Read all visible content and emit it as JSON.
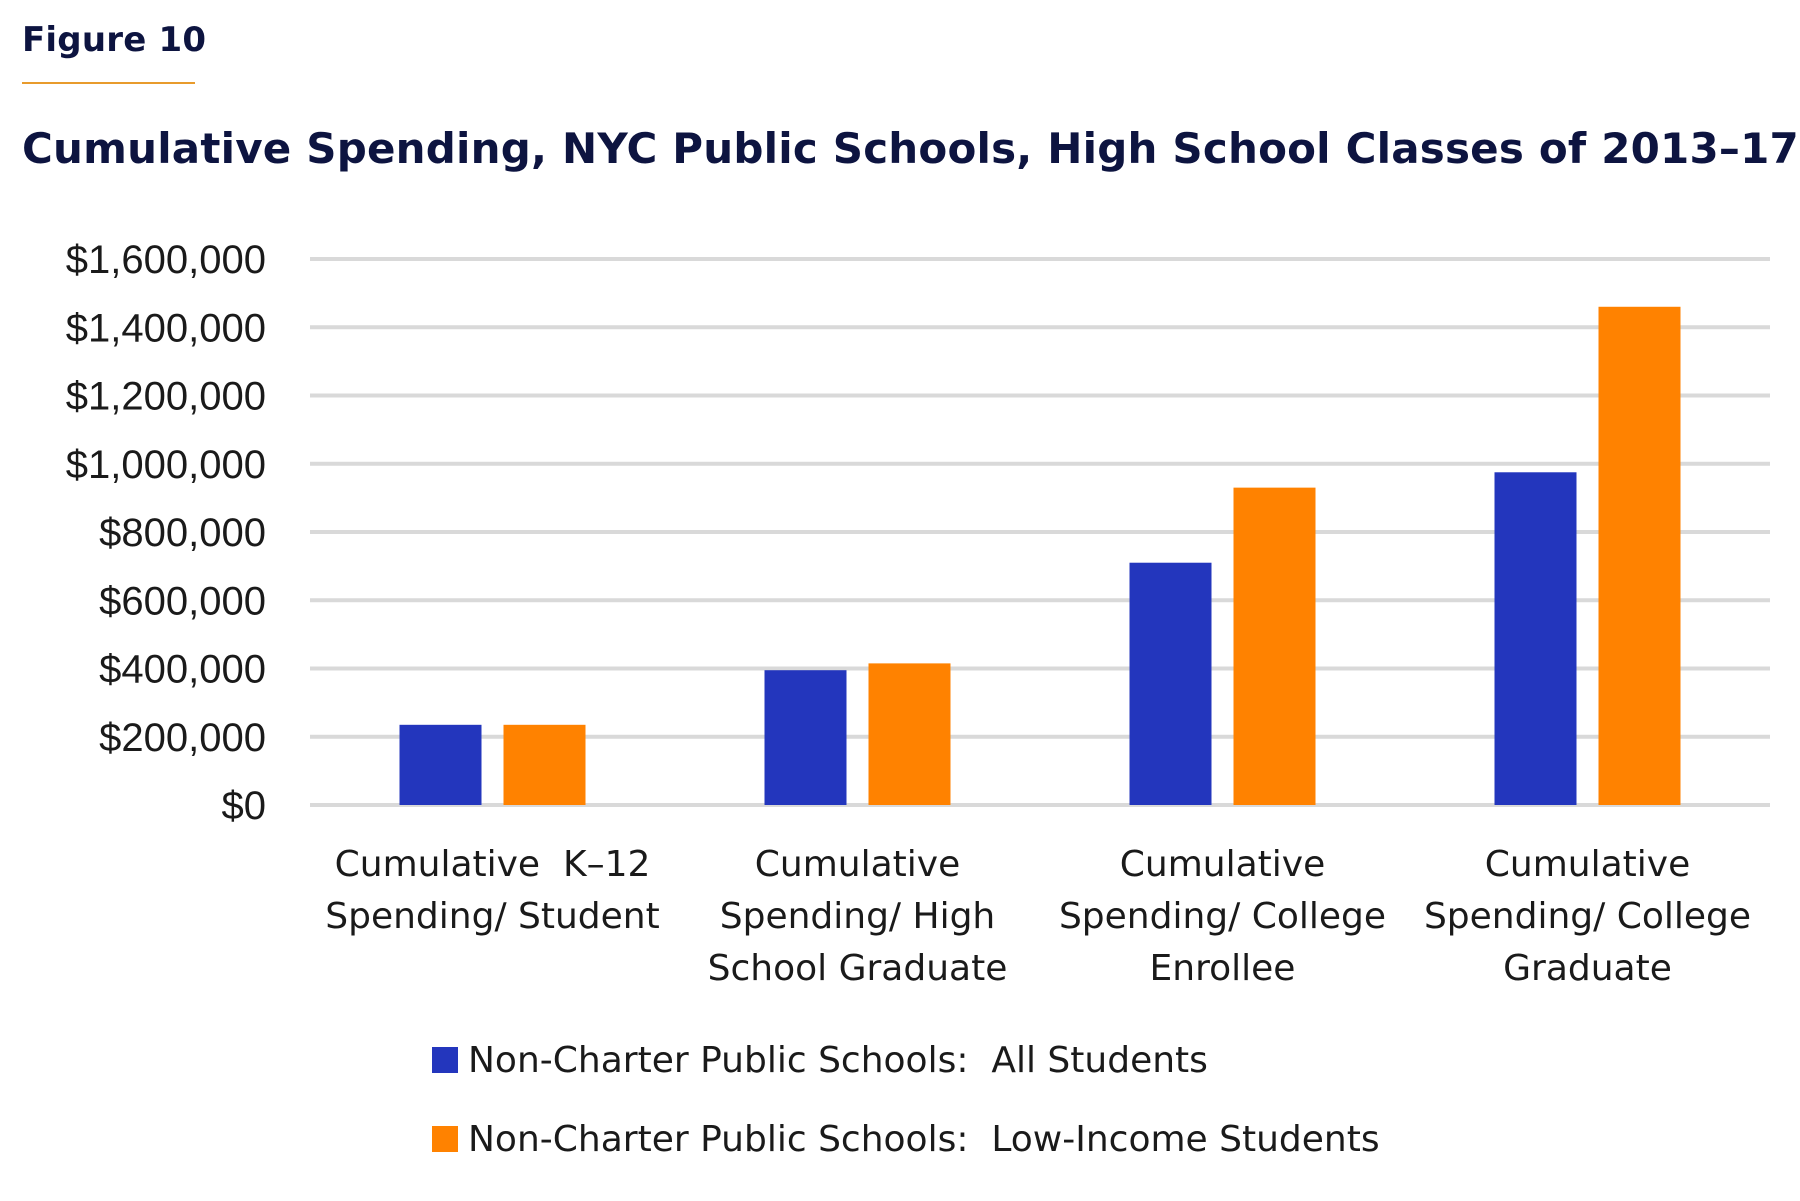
{
  "figure_label": "Figure 10",
  "colors": {
    "all_students": "#2336bd",
    "low_income": "#ff8200",
    "title": "#0d1440",
    "gridline": "#d9d9d9",
    "figure_rule": "#e89b2c"
  },
  "chart_data": {
    "type": "bar",
    "title": "Cumulative Spending, NYC Public Schools, High School Classes of 2013–17",
    "categories": [
      [
        "Cumulative  K–12",
        "Spending/ Student"
      ],
      [
        "Cumulative",
        "Spending/ High",
        "School Graduate"
      ],
      [
        "Cumulative",
        "Spending/ College",
        "Enrollee"
      ],
      [
        "Cumulative",
        "Spending/ College",
        "Graduate"
      ]
    ],
    "series": [
      {
        "name": "Non-Charter Public Schools:  All Students",
        "color": "#2336bd",
        "values": [
          235000,
          395000,
          710000,
          975000
        ]
      },
      {
        "name": "Non-Charter Public Schools:  Low-Income Students",
        "color": "#ff8200",
        "values": [
          235000,
          415000,
          930000,
          1460000
        ]
      }
    ],
    "ylim": [
      0,
      1600000
    ],
    "yticks": [
      0,
      200000,
      400000,
      600000,
      800000,
      1000000,
      1200000,
      1400000,
      1600000
    ],
    "ytick_labels": [
      "$0",
      "$200,000",
      "$400,000",
      "$600,000",
      "$800,000",
      "$1,000,000",
      "$1,200,000",
      "$1,400,000",
      "$1,600,000"
    ],
    "xlabel": "",
    "ylabel": "",
    "grid": true,
    "legend_position": "bottom"
  }
}
